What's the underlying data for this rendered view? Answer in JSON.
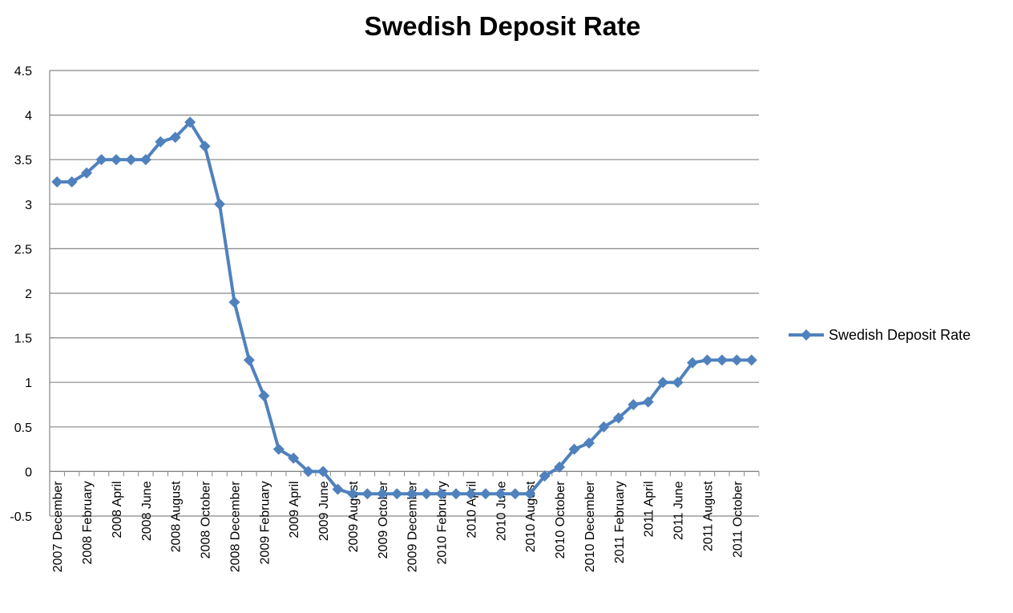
{
  "chart_data": {
    "type": "line",
    "title": "Swedish Deposit Rate",
    "xlabel": "",
    "ylabel": "",
    "ylim": [
      -0.5,
      4.5
    ],
    "y_ticks": [
      "4.5",
      "4",
      "3.5",
      "3",
      "2.5",
      "2",
      "1.5",
      "1",
      "0.5",
      "0",
      "-0.5"
    ],
    "grid": true,
    "legend_position": "right",
    "series_color": "#4f81bd",
    "x_tick_labels": [
      "2007 December",
      "2008 February",
      "2008 April",
      "2008 June",
      "2008 August",
      "2008 October",
      "2008 December",
      "2009 February",
      "2009 April",
      "2009 June",
      "2009 August",
      "2009 October",
      "2009 December",
      "2010 February",
      "2010 April",
      "2010 June",
      "2010 August",
      "2010 October",
      "2010 December",
      "2011 February",
      "2011 April",
      "2011 June",
      "2011 August",
      "2011 October"
    ],
    "series": [
      {
        "name": "Swedish Deposit Rate",
        "values": [
          3.25,
          3.25,
          3.35,
          3.5,
          3.5,
          3.5,
          3.5,
          3.7,
          3.75,
          3.92,
          3.65,
          3.0,
          1.9,
          1.25,
          0.85,
          0.25,
          0.15,
          0.0,
          0.0,
          -0.2,
          -0.25,
          -0.25,
          -0.25,
          -0.25,
          -0.25,
          -0.25,
          -0.25,
          -0.25,
          -0.25,
          -0.25,
          -0.25,
          -0.25,
          -0.25,
          -0.05,
          0.05,
          0.25,
          0.32,
          0.5,
          0.6,
          0.75,
          0.78,
          1.0,
          1.0,
          1.22,
          1.25,
          1.25,
          1.25,
          1.25
        ]
      }
    ]
  }
}
